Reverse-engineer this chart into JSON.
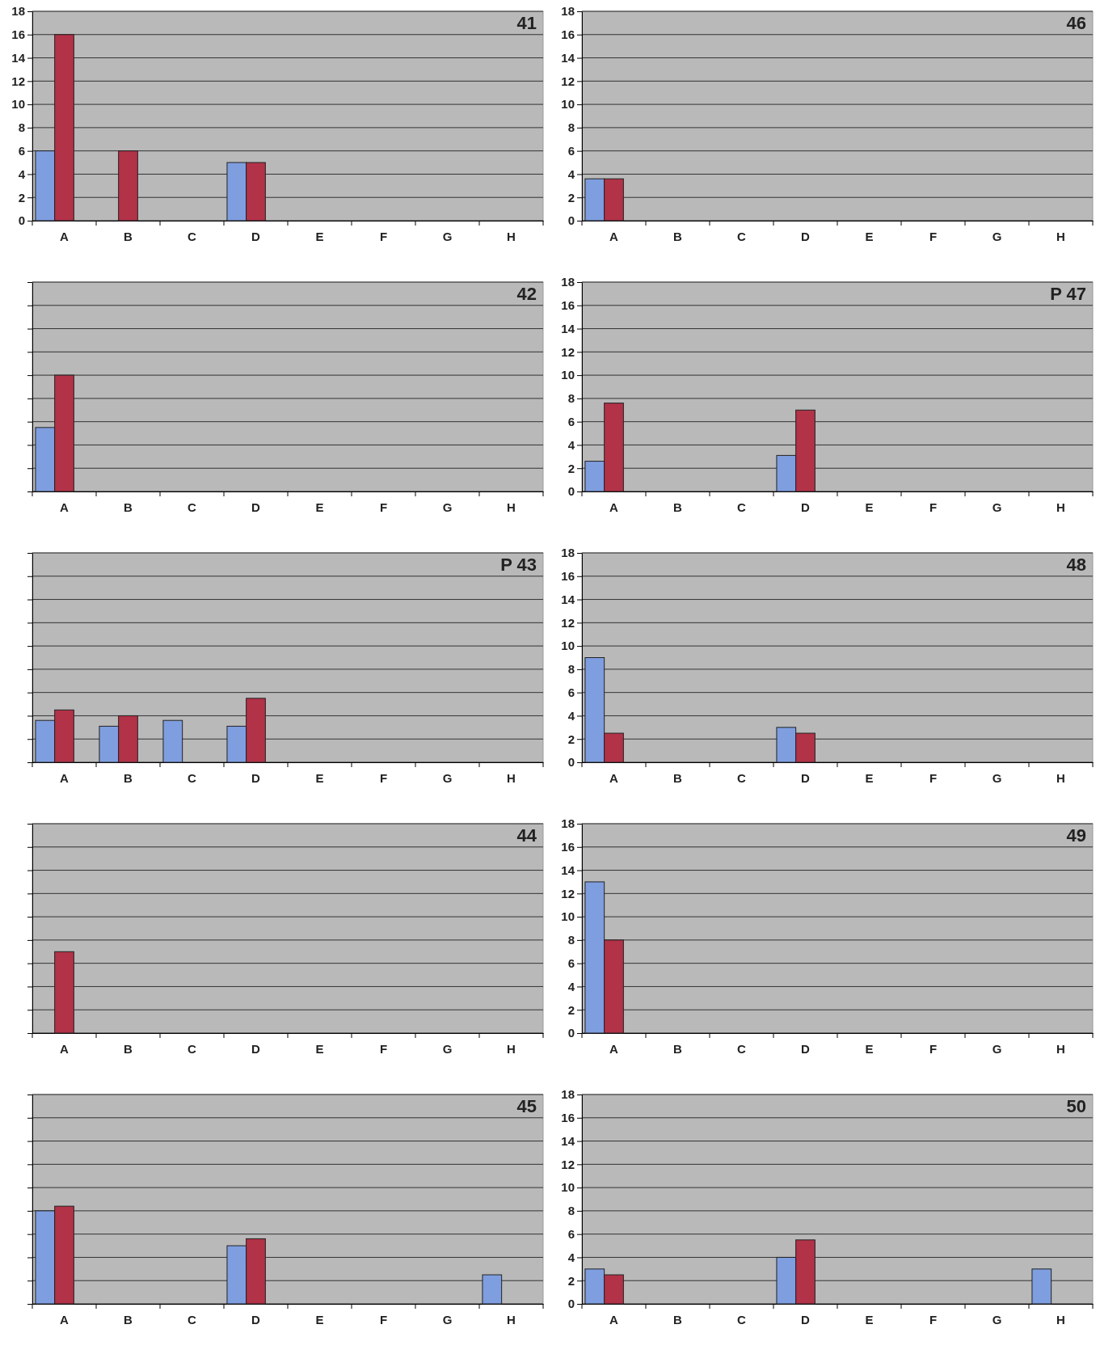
{
  "chart_data": [
    {
      "type": "bar",
      "title": "41",
      "categories": [
        "A",
        "B",
        "C",
        "D",
        "E",
        "F",
        "G",
        "H"
      ],
      "series": [
        {
          "color": "#7f9ee0",
          "values": [
            6,
            0,
            0,
            5,
            0,
            0,
            0,
            0
          ]
        },
        {
          "color": "#b23248",
          "values": [
            16,
            6,
            0,
            5,
            0,
            0,
            0,
            0
          ]
        }
      ],
      "ylim": [
        0,
        18
      ],
      "yticks": [
        0,
        2,
        4,
        6,
        8,
        10,
        12,
        14,
        16,
        18
      ],
      "grid": "y"
    },
    {
      "type": "bar",
      "title": "46",
      "categories": [
        "A",
        "B",
        "C",
        "D",
        "E",
        "F",
        "G",
        "H"
      ],
      "series": [
        {
          "color": "#7f9ee0",
          "values": [
            3.6,
            0,
            0,
            0,
            0,
            0,
            0,
            0
          ]
        },
        {
          "color": "#b23248",
          "values": [
            3.6,
            0,
            0,
            0,
            0,
            0,
            0,
            0
          ]
        }
      ],
      "ylim": [
        0,
        18
      ],
      "yticks": [
        0,
        2,
        4,
        6,
        8,
        10,
        12,
        14,
        16,
        18
      ],
      "grid": "y"
    },
    {
      "type": "bar",
      "title": "42",
      "categories": [
        "A",
        "B",
        "C",
        "D",
        "E",
        "F",
        "G",
        "H"
      ],
      "series": [
        {
          "color": "#7f9ee0",
          "values": [
            5.5,
            0,
            0,
            0,
            0,
            0,
            0,
            0
          ]
        },
        {
          "color": "#b23248",
          "values": [
            10,
            0,
            0,
            0,
            0,
            0,
            0,
            0
          ]
        }
      ],
      "ylim": [
        0,
        18
      ],
      "yticks": [
        {
          "value": 0,
          "label": null
        },
        {
          "value": 2,
          "label": null
        },
        {
          "value": 4,
          "label": null
        },
        {
          "value": 6,
          "label": null
        },
        {
          "value": 8,
          "label": null
        },
        {
          "value": 10,
          "label": null
        },
        {
          "value": 12,
          "label": null
        },
        {
          "value": 14,
          "label": null
        },
        {
          "value": 16,
          "label": null
        },
        {
          "value": 18,
          "label": null
        }
      ],
      "grid": "y",
      "tick_labels": "x"
    },
    {
      "type": "bar",
      "title": "P 47",
      "categories": [
        "A",
        "B",
        "C",
        "D",
        "E",
        "F",
        "G",
        "H"
      ],
      "series": [
        {
          "color": "#7f9ee0",
          "values": [
            2.6,
            0,
            0,
            3.1,
            0,
            0,
            0,
            0
          ]
        },
        {
          "color": "#b23248",
          "values": [
            7.6,
            0,
            0,
            7,
            0,
            0,
            0,
            0
          ]
        }
      ],
      "ylim": [
        0,
        18
      ],
      "yticks": [
        0,
        2,
        4,
        6,
        8,
        10,
        12,
        14,
        16,
        18
      ],
      "grid": "y"
    },
    {
      "type": "bar",
      "title": "P 43",
      "categories": [
        "A",
        "B",
        "C",
        "D",
        "E",
        "F",
        "G",
        "H"
      ],
      "series": [
        {
          "color": "#7f9ee0",
          "values": [
            3.6,
            3.1,
            3.6,
            3.1,
            0,
            0,
            0,
            0
          ]
        },
        {
          "color": "#b23248",
          "values": [
            4.5,
            4,
            0,
            5.5,
            0,
            0,
            0,
            0
          ]
        }
      ],
      "ylim": [
        0,
        18
      ],
      "yticks": [
        {
          "value": 0,
          "label": null
        },
        {
          "value": 2,
          "label": null
        },
        {
          "value": 4,
          "label": null
        },
        {
          "value": 6,
          "label": null
        },
        {
          "value": 8,
          "label": null
        },
        {
          "value": 10,
          "label": null
        },
        {
          "value": 12,
          "label": null
        },
        {
          "value": 14,
          "label": null
        },
        {
          "value": 16,
          "label": null
        },
        {
          "value": 18,
          "label": null
        }
      ],
      "grid": "y",
      "tick_labels": "x"
    },
    {
      "type": "bar",
      "title": "48",
      "categories": [
        "A",
        "B",
        "C",
        "D",
        "E",
        "F",
        "G",
        "H"
      ],
      "series": [
        {
          "color": "#7f9ee0",
          "values": [
            9,
            0,
            0,
            3,
            0,
            0,
            0,
            0
          ]
        },
        {
          "color": "#b23248",
          "values": [
            2.5,
            0,
            0,
            2.5,
            0,
            0,
            0,
            0
          ]
        }
      ],
      "ylim": [
        0,
        18
      ],
      "yticks": [
        0,
        2,
        4,
        6,
        8,
        10,
        12,
        14,
        16,
        18
      ],
      "grid": "y"
    },
    {
      "type": "bar",
      "title": "44",
      "categories": [
        "A",
        "B",
        "C",
        "D",
        "E",
        "F",
        "G",
        "H"
      ],
      "series": [
        {
          "color": "#7f9ee0",
          "values": [
            0,
            0,
            0,
            0,
            0,
            0,
            0,
            0
          ]
        },
        {
          "color": "#b23248",
          "values": [
            7,
            0,
            0,
            0,
            0,
            0,
            0,
            0
          ]
        }
      ],
      "ylim": [
        0,
        18
      ],
      "yticks": [
        {
          "value": 0,
          "label": null
        },
        {
          "value": 2,
          "label": null
        },
        {
          "value": 4,
          "label": null
        },
        {
          "value": 6,
          "label": null
        },
        {
          "value": 8,
          "label": null
        },
        {
          "value": 10,
          "label": null
        },
        {
          "value": 12,
          "label": null
        },
        {
          "value": 14,
          "label": null
        },
        {
          "value": 16,
          "label": null
        },
        {
          "value": 18,
          "label": null
        }
      ],
      "grid": "y",
      "tick_labels": "x"
    },
    {
      "type": "bar",
      "title": "49",
      "categories": [
        "A",
        "B",
        "C",
        "D",
        "E",
        "F",
        "G",
        "H"
      ],
      "series": [
        {
          "color": "#7f9ee0",
          "values": [
            13,
            0,
            0,
            0,
            0,
            0,
            0,
            0
          ]
        },
        {
          "color": "#b23248",
          "values": [
            8,
            0,
            0,
            0,
            0,
            0,
            0,
            0
          ]
        }
      ],
      "ylim": [
        0,
        18
      ],
      "yticks": [
        0,
        2,
        4,
        6,
        8,
        10,
        12,
        14,
        16,
        18
      ],
      "grid": "y"
    },
    {
      "type": "bar",
      "title": "45",
      "categories": [
        "A",
        "B",
        "C",
        "D",
        "E",
        "F",
        "G",
        "H"
      ],
      "series": [
        {
          "color": "#7f9ee0",
          "values": [
            8,
            0,
            0,
            5,
            0,
            0,
            0,
            2.5
          ]
        },
        {
          "color": "#b23248",
          "values": [
            8.4,
            0,
            0,
            5.6,
            0,
            0,
            0,
            0
          ]
        }
      ],
      "ylim": [
        0,
        18
      ],
      "yticks": [
        {
          "value": 0,
          "label": null
        },
        {
          "value": 2,
          "label": null
        },
        {
          "value": 4,
          "label": null
        },
        {
          "value": 6,
          "label": null
        },
        {
          "value": 8,
          "label": null
        },
        {
          "value": 10,
          "label": null
        },
        {
          "value": 12,
          "label": null
        },
        {
          "value": 14,
          "label": null
        },
        {
          "value": 16,
          "label": null
        },
        {
          "value": 18,
          "label": null
        }
      ],
      "grid": "y",
      "tick_labels": "x"
    },
    {
      "type": "bar",
      "title": "50",
      "categories": [
        "A",
        "B",
        "C",
        "D",
        "E",
        "F",
        "G",
        "H"
      ],
      "series": [
        {
          "color": "#7f9ee0",
          "values": [
            3,
            0,
            0,
            4,
            0,
            0,
            0,
            3
          ]
        },
        {
          "color": "#b23248",
          "values": [
            2.5,
            0,
            0,
            5.5,
            0,
            0,
            0,
            0
          ]
        }
      ],
      "ylim": [
        0,
        18
      ],
      "yticks": [
        0,
        2,
        4,
        6,
        8,
        10,
        12,
        14,
        16,
        18
      ],
      "grid": "y"
    }
  ]
}
